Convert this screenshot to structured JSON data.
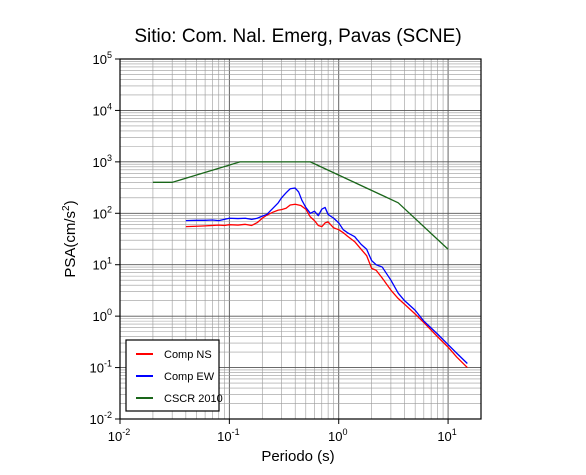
{
  "chart_data": {
    "type": "line",
    "title": "Sitio: Com. Nal. Emerg, Pavas (SCNE)",
    "xlabel": "Periodo (s)",
    "ylabel_main": "PSA(cm/s",
    "ylabel_sup": "2",
    "ylabel_close": ")",
    "x_scale": "log",
    "y_scale": "log",
    "xlim": [
      0.01,
      20
    ],
    "ylim": [
      0.01,
      100000
    ],
    "grid": true,
    "legend_position": "bottom-left",
    "x_ticks": [
      {
        "value": 0.01,
        "base": "10",
        "exp": "-2"
      },
      {
        "value": 0.1,
        "base": "10",
        "exp": "-1"
      },
      {
        "value": 1,
        "base": "10",
        "exp": "0"
      },
      {
        "value": 10,
        "base": "10",
        "exp": "1"
      }
    ],
    "y_ticks": [
      {
        "value": 0.01,
        "base": "10",
        "exp": "-2"
      },
      {
        "value": 0.1,
        "base": "10",
        "exp": "-1"
      },
      {
        "value": 1,
        "base": "10",
        "exp": "0"
      },
      {
        "value": 10,
        "base": "10",
        "exp": "1"
      },
      {
        "value": 100,
        "base": "10",
        "exp": "2"
      },
      {
        "value": 1000,
        "base": "10",
        "exp": "3"
      },
      {
        "value": 10000,
        "base": "10",
        "exp": "4"
      },
      {
        "value": 100000,
        "base": "10",
        "exp": "5"
      }
    ],
    "series": [
      {
        "name": "Comp NS",
        "color": "#ff0000",
        "points": [
          [
            0.04,
            55
          ],
          [
            0.05,
            56
          ],
          [
            0.06,
            57
          ],
          [
            0.07,
            58
          ],
          [
            0.08,
            59
          ],
          [
            0.09,
            58
          ],
          [
            0.1,
            60
          ],
          [
            0.12,
            59
          ],
          [
            0.14,
            61
          ],
          [
            0.16,
            58
          ],
          [
            0.18,
            66
          ],
          [
            0.2,
            80
          ],
          [
            0.22,
            92
          ],
          [
            0.25,
            105
          ],
          [
            0.28,
            115
          ],
          [
            0.3,
            118
          ],
          [
            0.33,
            125
          ],
          [
            0.36,
            145
          ],
          [
            0.4,
            150
          ],
          [
            0.45,
            142
          ],
          [
            0.5,
            120
          ],
          [
            0.55,
            85
          ],
          [
            0.6,
            72
          ],
          [
            0.65,
            58
          ],
          [
            0.7,
            55
          ],
          [
            0.75,
            65
          ],
          [
            0.8,
            68
          ],
          [
            0.9,
            52
          ],
          [
            1.0,
            48
          ],
          [
            1.1,
            42
          ],
          [
            1.2,
            36
          ],
          [
            1.4,
            28
          ],
          [
            1.6,
            20
          ],
          [
            1.8,
            15
          ],
          [
            2.0,
            8.5
          ],
          [
            2.2,
            7.8
          ],
          [
            2.5,
            5.5
          ],
          [
            3.0,
            3.2
          ],
          [
            3.5,
            2.2
          ],
          [
            4.0,
            1.7
          ],
          [
            5.0,
            1.1
          ],
          [
            6.0,
            0.75
          ],
          [
            8.0,
            0.4
          ],
          [
            10.0,
            0.25
          ],
          [
            12.0,
            0.16
          ],
          [
            15.0,
            0.1
          ]
        ]
      },
      {
        "name": "Comp EW",
        "color": "#0000ff",
        "points": [
          [
            0.04,
            72
          ],
          [
            0.05,
            73
          ],
          [
            0.06,
            73
          ],
          [
            0.07,
            74
          ],
          [
            0.08,
            72
          ],
          [
            0.09,
            76
          ],
          [
            0.1,
            80
          ],
          [
            0.12,
            79
          ],
          [
            0.14,
            80
          ],
          [
            0.16,
            76
          ],
          [
            0.18,
            80
          ],
          [
            0.2,
            88
          ],
          [
            0.22,
            95
          ],
          [
            0.25,
            125
          ],
          [
            0.28,
            160
          ],
          [
            0.3,
            200
          ],
          [
            0.33,
            250
          ],
          [
            0.36,
            300
          ],
          [
            0.4,
            310
          ],
          [
            0.43,
            260
          ],
          [
            0.46,
            180
          ],
          [
            0.5,
            130
          ],
          [
            0.55,
            100
          ],
          [
            0.6,
            110
          ],
          [
            0.65,
            90
          ],
          [
            0.7,
            120
          ],
          [
            0.75,
            130
          ],
          [
            0.8,
            95
          ],
          [
            0.9,
            80
          ],
          [
            1.0,
            65
          ],
          [
            1.1,
            48
          ],
          [
            1.2,
            42
          ],
          [
            1.4,
            35
          ],
          [
            1.6,
            25
          ],
          [
            1.8,
            20
          ],
          [
            2.0,
            12
          ],
          [
            2.2,
            10
          ],
          [
            2.5,
            9
          ],
          [
            3.0,
            5
          ],
          [
            3.5,
            2.8
          ],
          [
            4.0,
            2.0
          ],
          [
            5.0,
            1.3
          ],
          [
            6.0,
            0.8
          ],
          [
            8.0,
            0.45
          ],
          [
            10.0,
            0.28
          ],
          [
            12.0,
            0.19
          ],
          [
            15.0,
            0.12
          ]
        ]
      },
      {
        "name": "CSCR 2010",
        "color": "#1a661a",
        "points": [
          [
            0.02,
            400
          ],
          [
            0.03,
            400
          ],
          [
            0.125,
            1000
          ],
          [
            0.55,
            1000
          ],
          [
            3.5,
            160
          ],
          [
            10.0,
            20
          ]
        ]
      }
    ]
  }
}
